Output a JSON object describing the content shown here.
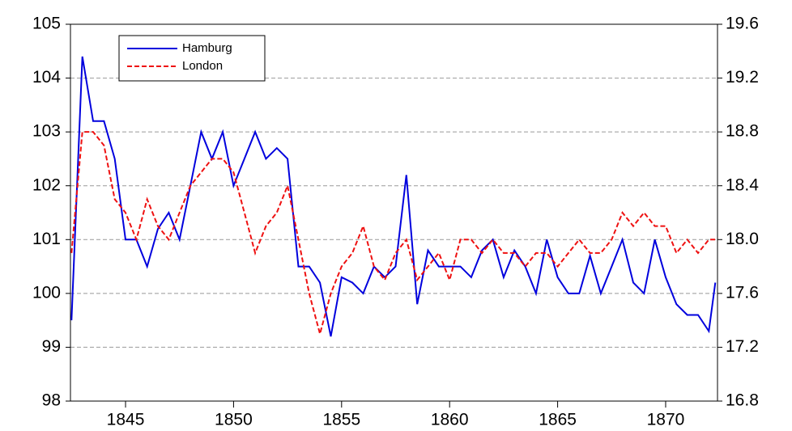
{
  "chart_data": {
    "type": "line",
    "x": [
      1842.5,
      1843.0,
      1843.5,
      1844.0,
      1844.5,
      1845.0,
      1845.5,
      1846.0,
      1846.5,
      1847.0,
      1847.5,
      1848.0,
      1848.5,
      1849.0,
      1849.5,
      1850.0,
      1850.5,
      1851.0,
      1851.5,
      1852.0,
      1852.5,
      1853.0,
      1853.5,
      1854.0,
      1854.5,
      1855.0,
      1855.5,
      1856.0,
      1856.5,
      1857.0,
      1857.5,
      1858.0,
      1858.5,
      1859.0,
      1859.5,
      1860.0,
      1860.5,
      1861.0,
      1861.5,
      1862.0,
      1862.5,
      1863.0,
      1863.5,
      1864.0,
      1864.5,
      1865.0,
      1865.5,
      1866.0,
      1866.5,
      1867.0,
      1867.5,
      1868.0,
      1868.5,
      1869.0,
      1869.5,
      1870.0,
      1870.5,
      1871.0,
      1871.5,
      1872.0,
      1872.3
    ],
    "series": [
      {
        "name": "Hamburg",
        "color": "#0000dd",
        "dash": false,
        "values": [
          99.5,
          104.4,
          103.2,
          103.2,
          102.5,
          101.0,
          101.0,
          100.5,
          101.2,
          101.5,
          101.0,
          102.0,
          103.0,
          102.5,
          103.0,
          102.0,
          102.5,
          103.0,
          102.5,
          102.7,
          102.5,
          100.5,
          100.5,
          100.2,
          99.2,
          100.3,
          100.2,
          100.0,
          100.5,
          100.3,
          100.5,
          102.2,
          99.8,
          100.8,
          100.5,
          100.5,
          100.5,
          100.3,
          100.8,
          101.0,
          100.3,
          100.8,
          100.5,
          100.0,
          101.0,
          100.3,
          100.0,
          100.0,
          100.7,
          100.0,
          100.5,
          101.0,
          100.2,
          100.0,
          101.0,
          100.3,
          99.8,
          99.6,
          99.6,
          99.3,
          100.2
        ]
      },
      {
        "name": "London",
        "color": "#ee1111",
        "dash": true,
        "axis": "y2",
        "values": [
          17.9,
          18.8,
          18.8,
          18.7,
          18.3,
          18.2,
          18.0,
          18.3,
          18.1,
          18.0,
          18.2,
          18.4,
          18.5,
          18.6,
          18.6,
          18.5,
          18.2,
          17.9,
          18.1,
          18.2,
          18.4,
          18.0,
          17.6,
          17.3,
          17.6,
          17.8,
          17.9,
          18.1,
          17.8,
          17.7,
          17.9,
          18.0,
          17.7,
          17.8,
          17.9,
          17.7,
          18.0,
          18.0,
          17.9,
          18.0,
          17.9,
          17.9,
          17.8,
          17.9,
          17.9,
          17.8,
          17.9,
          18.0,
          17.9,
          17.9,
          18.0,
          18.2,
          18.1,
          18.2,
          18.1,
          18.1,
          17.9,
          18.0,
          17.9,
          18.0,
          18.0
        ]
      }
    ],
    "xlim": [
      1842.45,
      1872.4
    ],
    "xticks": [
      1845,
      1850,
      1855,
      1860,
      1865,
      1870
    ],
    "ylim": [
      98,
      105
    ],
    "yticks": [
      98,
      99,
      100,
      101,
      102,
      103,
      104,
      105
    ],
    "y2lim": [
      16.8,
      19.6
    ],
    "y2ticks": [
      16.8,
      17.2,
      17.6,
      {
        "value": 18,
        "label": "18.0"
      },
      18.4,
      18.8,
      19.2,
      19.6
    ],
    "grid": true,
    "legend": "top-left"
  }
}
